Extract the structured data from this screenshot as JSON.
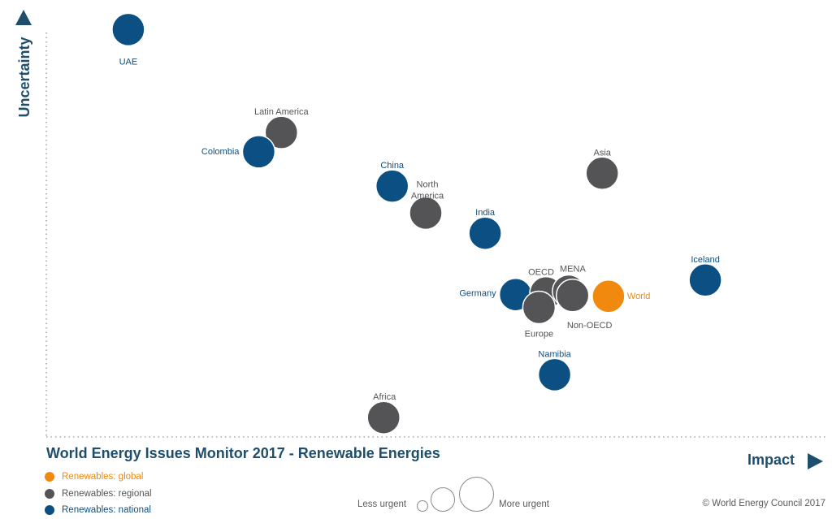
{
  "colors": {
    "global": "#f0890e",
    "regional": "#545456",
    "national": "#0c4f82",
    "axis": "#1e4e6c",
    "text_muted": "#5b5b5b"
  },
  "chart_data": {
    "type": "scatter",
    "title": "World Energy Issues Monitor 2017 - Renewable Energies",
    "xlabel": "Impact",
    "ylabel": "Uncertainty",
    "xlim": [
      0,
      1
    ],
    "ylim": [
      0,
      1
    ],
    "grid": false,
    "points": [
      {
        "name": "UAE",
        "category": "national",
        "x": 0.105,
        "y": 0.95
      },
      {
        "name": "Latin America",
        "category": "regional",
        "x": 0.301,
        "y": 0.71
      },
      {
        "name": "Colombia",
        "category": "national",
        "x": 0.272,
        "y": 0.665
      },
      {
        "name": "China",
        "category": "national",
        "x": 0.443,
        "y": 0.585
      },
      {
        "name": "North America",
        "category": "regional",
        "x": 0.486,
        "y": 0.522
      },
      {
        "name": "Asia",
        "category": "regional",
        "x": 0.712,
        "y": 0.615
      },
      {
        "name": "India",
        "category": "national",
        "x": 0.562,
        "y": 0.475
      },
      {
        "name": "Iceland",
        "category": "national",
        "x": 0.844,
        "y": 0.366
      },
      {
        "name": "Germany",
        "category": "national",
        "x": 0.601,
        "y": 0.332
      },
      {
        "name": "OECD",
        "category": "regional",
        "x": 0.64,
        "y": 0.336
      },
      {
        "name": "MENA",
        "category": "regional",
        "x": 0.669,
        "y": 0.34
      },
      {
        "name": "Non-OECD",
        "category": "regional",
        "x": 0.674,
        "y": 0.33
      },
      {
        "name": "Europe",
        "category": "regional",
        "x": 0.631,
        "y": 0.302
      },
      {
        "name": "World",
        "category": "global",
        "x": 0.72,
        "y": 0.328
      },
      {
        "name": "Namibia",
        "category": "national",
        "x": 0.651,
        "y": 0.145
      },
      {
        "name": "Africa",
        "category": "regional",
        "x": 0.432,
        "y": 0.045
      }
    ],
    "legend": [
      {
        "category": "global",
        "label": "Renewables: global"
      },
      {
        "category": "regional",
        "label": "Renewables: regional"
      },
      {
        "category": "national",
        "label": "Renewables: national"
      }
    ],
    "size_legend": {
      "less": "Less urgent",
      "more": "More urgent"
    }
  },
  "copyright": "© World Energy Council 2017"
}
